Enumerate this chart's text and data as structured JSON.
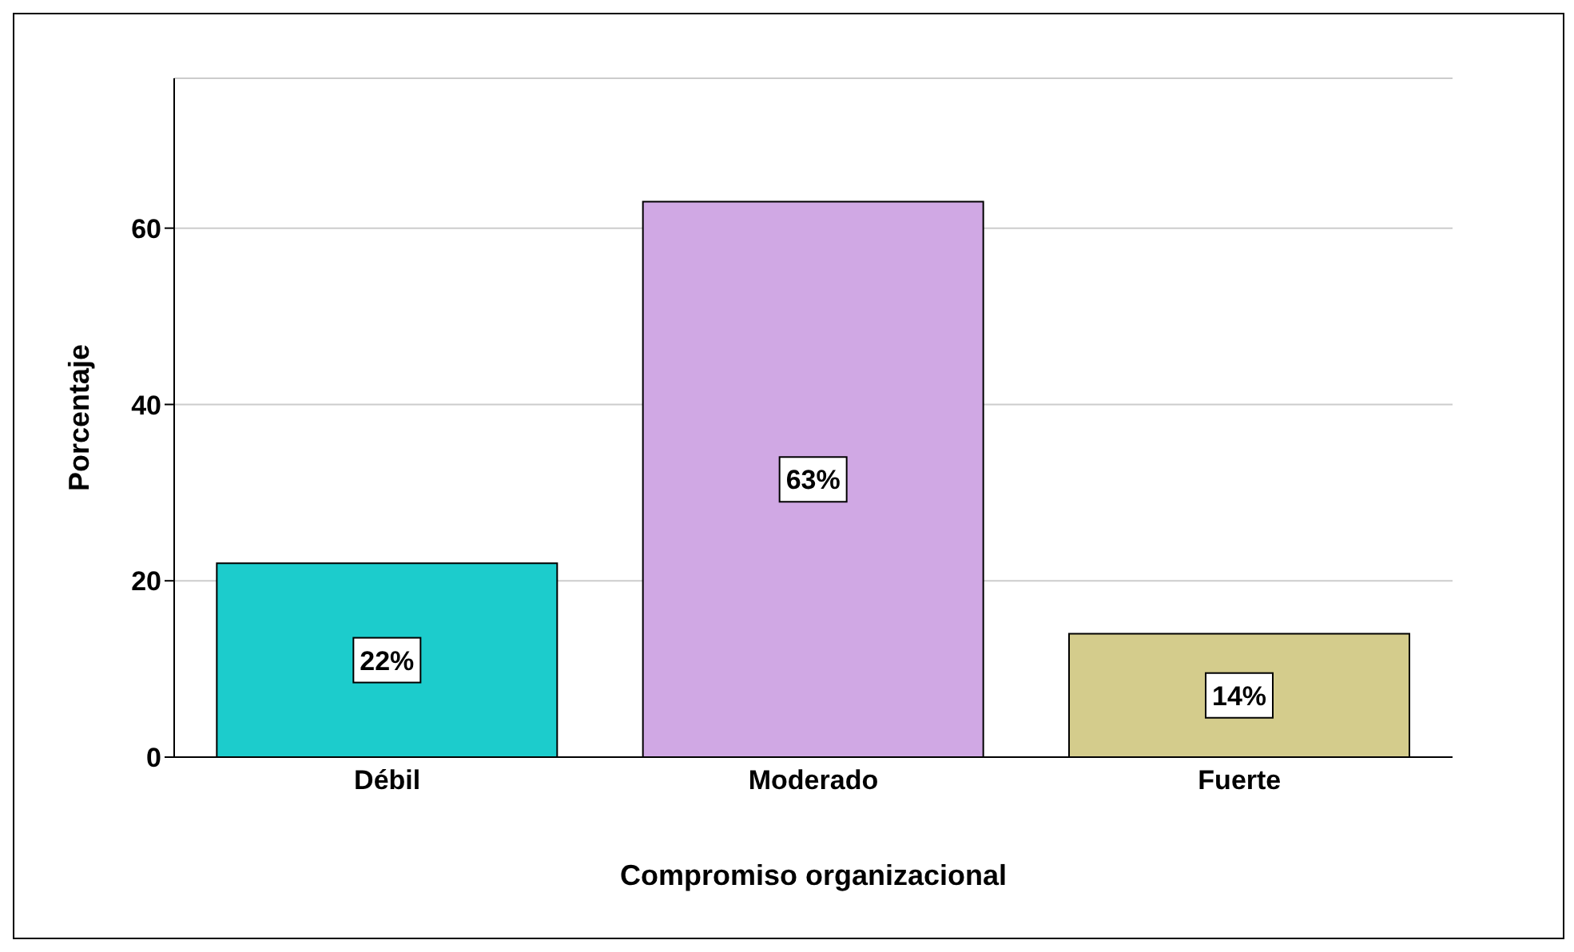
{
  "chart_data": {
    "type": "bar",
    "xlabel": "Compromiso organizacional",
    "ylabel": "Porcentaje",
    "categories": [
      "Débil",
      "Moderado",
      "Fuerte"
    ],
    "values": [
      22,
      63,
      14
    ],
    "colors": [
      "#1ccccc",
      "#d0a8e4",
      "#d4cc8c"
    ],
    "value_labels": [
      "22%",
      "63%",
      "14%"
    ],
    "ylim": [
      0,
      77
    ],
    "yticks": [
      0,
      20,
      40,
      60
    ],
    "grid": "y"
  }
}
